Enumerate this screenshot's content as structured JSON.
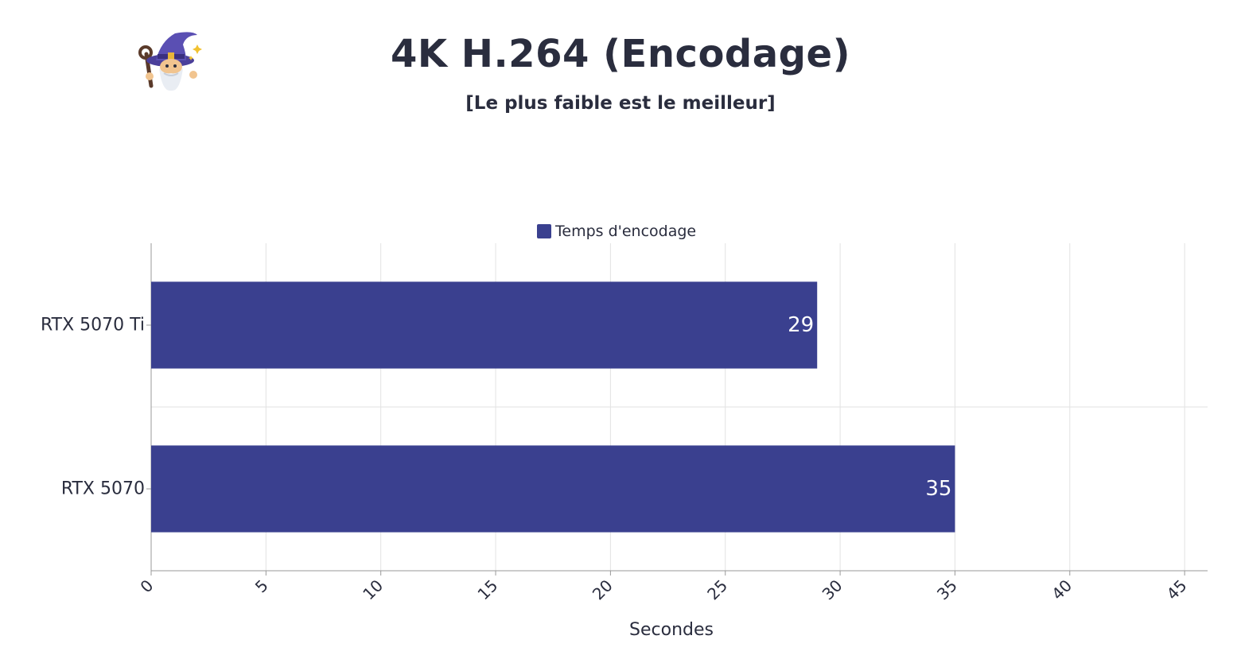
{
  "header": {
    "title": "4K H.264 (Encodage)",
    "subtitle": "[Le plus faible est le meilleur]",
    "logo_icon": "wizard-icon"
  },
  "colors": {
    "bar": "#3a408f",
    "text": "#2a2d3e",
    "grid": "#e2e2e2",
    "axis": "#999999",
    "bar_label": "#ffffff"
  },
  "chart_data": {
    "type": "bar",
    "orientation": "horizontal",
    "categories": [
      "RTX 5070 Ti",
      "RTX 5070"
    ],
    "series": [
      {
        "name": "Temps d'encodage",
        "values": [
          29,
          35
        ]
      }
    ],
    "xlabel": "Secondes",
    "ylabel": "",
    "xlim": [
      0,
      46
    ],
    "xticks": [
      0,
      5,
      10,
      15,
      20,
      25,
      30,
      35,
      40,
      45
    ],
    "grid": true,
    "legend_position": "top-center",
    "data_labels": true
  }
}
